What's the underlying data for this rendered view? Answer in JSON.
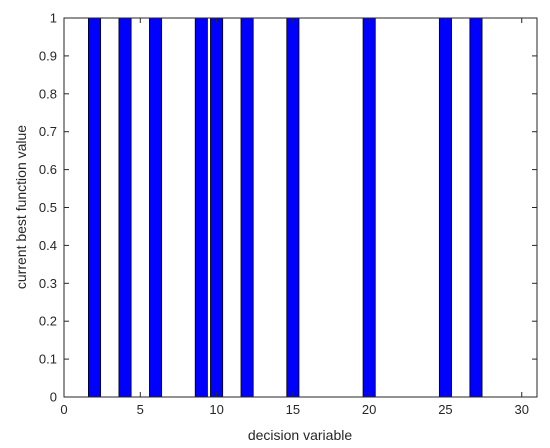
{
  "chart_data": {
    "type": "bar",
    "title": "",
    "xlabel": "decision variable",
    "ylabel": "current best function value",
    "xlim": [
      0,
      31
    ],
    "ylim": [
      0,
      1
    ],
    "xticks": [
      0,
      5,
      10,
      15,
      20,
      25,
      30
    ],
    "yticks": [
      0,
      0.1,
      0.2,
      0.3,
      0.4,
      0.5,
      0.6,
      0.7,
      0.8,
      0.9,
      1
    ],
    "grid": false,
    "bar_color": "#0000ff",
    "bar_edge_color": "#000000",
    "bar_width": 0.8,
    "x": [
      2,
      4,
      6,
      9,
      10,
      12,
      15,
      20,
      25,
      27
    ],
    "values": [
      1,
      1,
      1,
      1,
      1,
      1,
      1,
      1,
      1,
      1
    ]
  }
}
